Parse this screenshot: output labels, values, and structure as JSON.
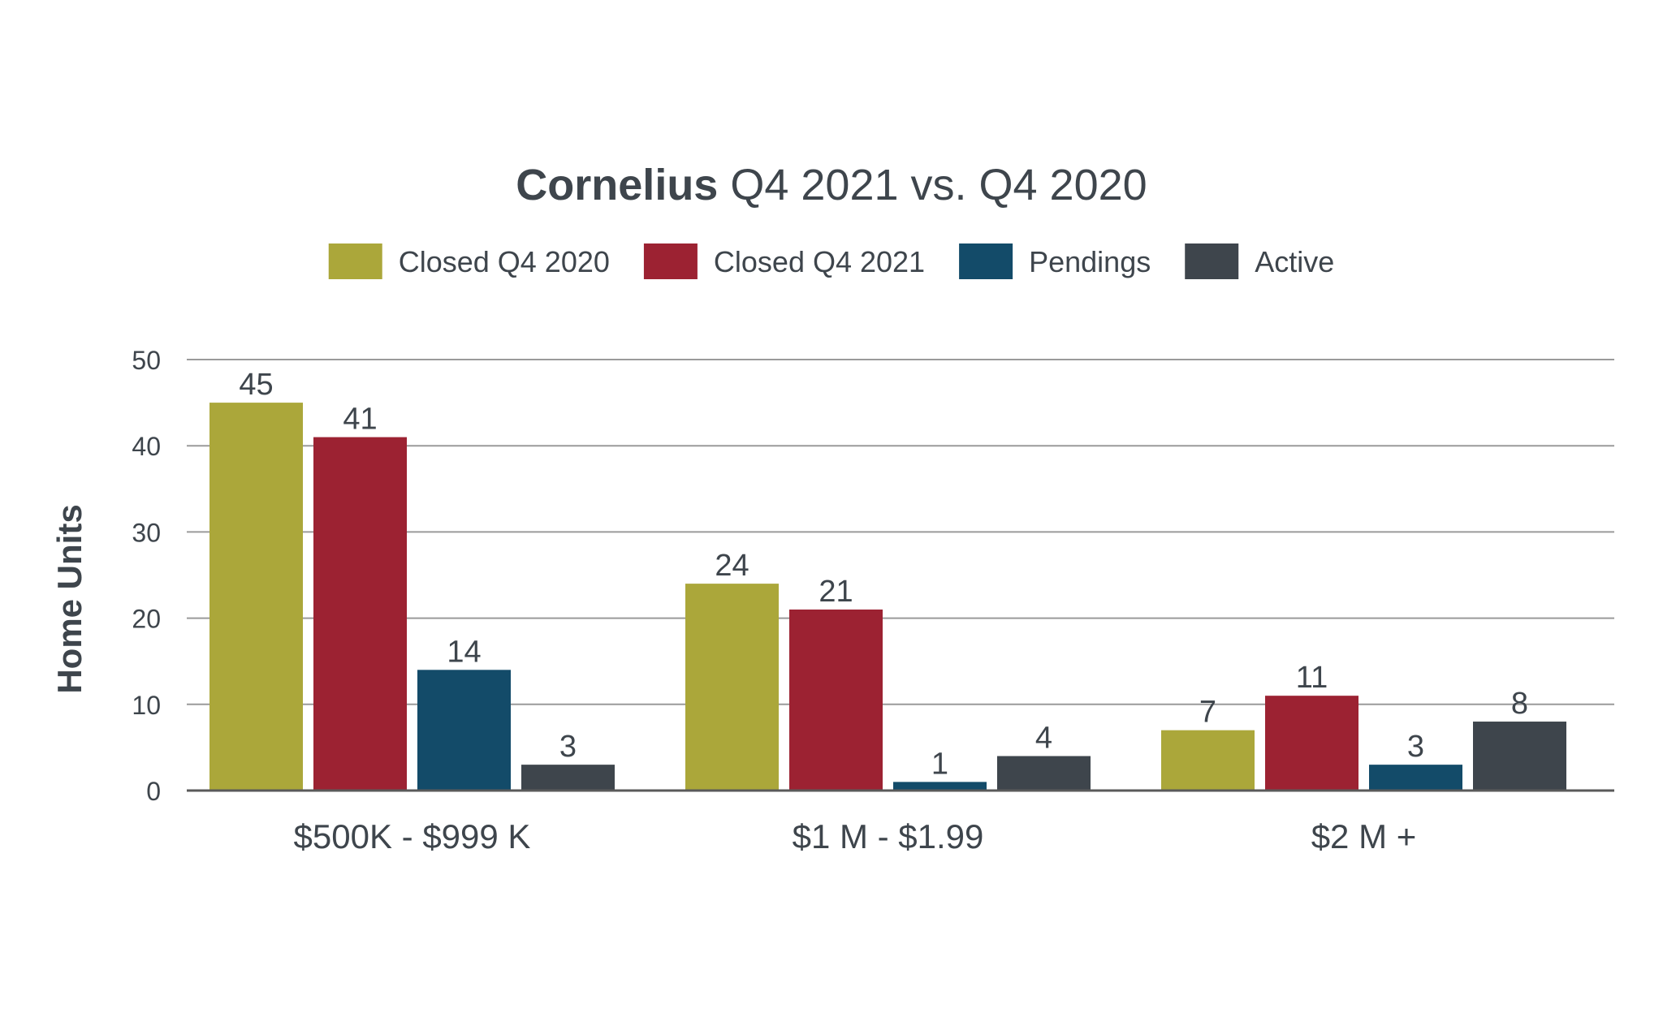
{
  "chart_data": {
    "type": "bar",
    "title_bold": "Cornelius",
    "title_rest": " Q4 2021 vs. Q4 2020",
    "ylabel": "Home Units",
    "xlabel": "",
    "ylim": [
      0,
      50
    ],
    "yticks": [
      0,
      10,
      20,
      30,
      40,
      50
    ],
    "grid": true,
    "legend_placement": "top-center",
    "categories": [
      "$500K - $999 K",
      "$1 M - $1.99",
      "$2 M +"
    ],
    "series": [
      {
        "name": "Closed Q4 2020",
        "color": "#aba73a",
        "values": [
          45,
          24,
          7
        ]
      },
      {
        "name": "Closed Q4 2021",
        "color": "#9c2232",
        "values": [
          41,
          21,
          11
        ]
      },
      {
        "name": "Pendings",
        "color": "#134b69",
        "values": [
          14,
          1,
          3
        ]
      },
      {
        "name": "Active",
        "color": "#3e454c",
        "values": [
          3,
          4,
          8
        ]
      }
    ],
    "colors": {
      "text": "#3e454c",
      "grid": "#9a9a9a",
      "axis": "#5a5a5a"
    }
  }
}
